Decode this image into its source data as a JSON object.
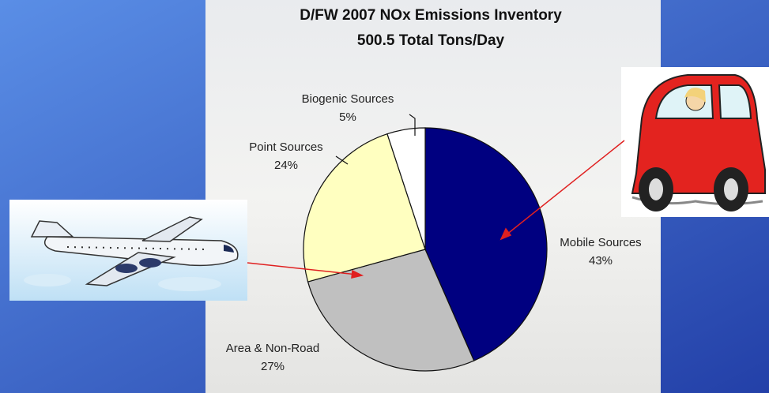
{
  "chart_data": {
    "type": "pie",
    "title": "D/FW 2007 NOx Emissions Inventory",
    "subtitle": "500.5 Total Tons/Day",
    "categories": [
      "Mobile Sources",
      "Area & Non-Road",
      "Point Sources",
      "Biogenic Sources"
    ],
    "values": [
      43,
      27,
      24,
      5
    ],
    "value_labels": [
      "43%",
      "27%",
      "24%",
      "5%"
    ],
    "colors": [
      "#000080",
      "#c0c0c0",
      "#ffffc0",
      "#ffffff"
    ]
  }
}
